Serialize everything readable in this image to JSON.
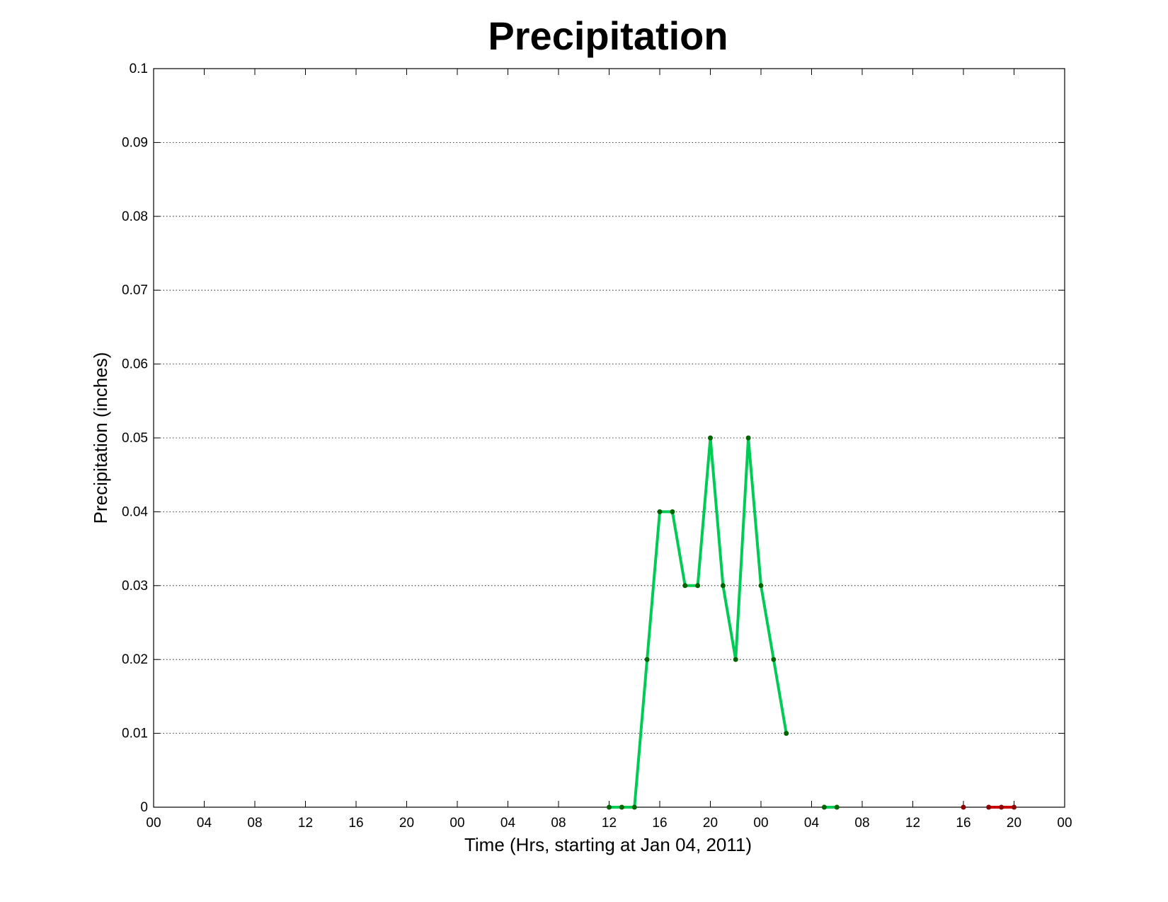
{
  "chart_data": {
    "type": "line",
    "title": "Precipitation",
    "xlabel": "Time (Hrs, starting at Jan 04, 2011)",
    "ylabel": "Precipitation (inches)",
    "xlim": [
      0,
      72
    ],
    "ylim": [
      0,
      0.1
    ],
    "grid": "horizontal-dotted",
    "x_tick_values": [
      0,
      4,
      8,
      12,
      16,
      20,
      24,
      28,
      32,
      36,
      40,
      44,
      48,
      52,
      56,
      60,
      64,
      68,
      72
    ],
    "x_tick_labels": [
      "00",
      "04",
      "08",
      "12",
      "16",
      "20",
      "00",
      "04",
      "08",
      "12",
      "16",
      "20",
      "00",
      "04",
      "08",
      "12",
      "16",
      "20",
      "00"
    ],
    "y_tick_values": [
      0,
      0.01,
      0.02,
      0.03,
      0.04,
      0.05,
      0.06,
      0.07,
      0.08,
      0.09,
      0.1
    ],
    "y_tick_labels": [
      "0",
      "0.01",
      "0.02",
      "0.03",
      "0.04",
      "0.05",
      "0.06",
      "0.07",
      "0.08",
      "0.09",
      "0.1"
    ],
    "series": [
      {
        "color": "#00cc55",
        "marker_color": "#006400",
        "segments": [
          [
            [
              36,
              0
            ],
            [
              37,
              0
            ],
            [
              38,
              0
            ],
            [
              39,
              0.02
            ],
            [
              40,
              0.04
            ],
            [
              41,
              0.04
            ],
            [
              42,
              0.03
            ],
            [
              43,
              0.03
            ],
            [
              44,
              0.05
            ],
            [
              45,
              0.03
            ],
            [
              46,
              0.02
            ],
            [
              47,
              0.05
            ],
            [
              48,
              0.03
            ],
            [
              49,
              0.02
            ],
            [
              50,
              0.01
            ]
          ],
          [
            [
              53,
              0
            ],
            [
              54,
              0
            ]
          ]
        ]
      },
      {
        "color": "#cc0000",
        "marker_color": "#8b0000",
        "segments": [
          [
            [
              64,
              0
            ]
          ],
          [
            [
              66,
              0
            ],
            [
              67,
              0
            ],
            [
              68,
              0
            ]
          ]
        ]
      }
    ]
  }
}
